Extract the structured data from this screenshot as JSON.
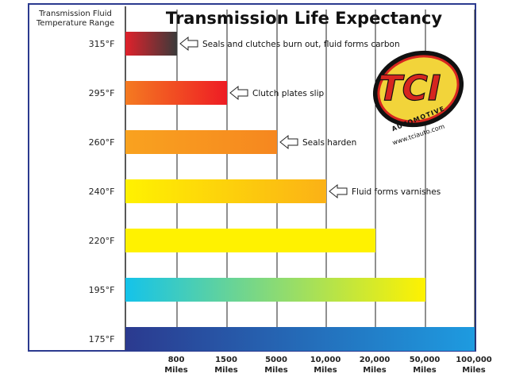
{
  "chart_data": {
    "type": "bar",
    "orientation": "horizontal",
    "title": "Transmission Life Expectancy",
    "ylabel": [
      "Transmission Fluid",
      "Temperature Range"
    ],
    "categories": [
      "315°F",
      "295°F",
      "260°F",
      "240°F",
      "220°F",
      "195°F",
      "175°F"
    ],
    "x_ticks": [
      {
        "value": "800",
        "unit": "Miles"
      },
      {
        "value": "1500",
        "unit": "Miles"
      },
      {
        "value": "5000",
        "unit": "Miles"
      },
      {
        "value": "10,000",
        "unit": "Miles"
      },
      {
        "value": "20,000",
        "unit": "Miles"
      },
      {
        "value": "50,000",
        "unit": "Miles"
      },
      {
        "value": "100,000",
        "unit": "Miles"
      }
    ],
    "values": [
      800,
      1500,
      5000,
      10000,
      20000,
      50000,
      100000
    ],
    "bar_colors": [
      [
        "#e0212b",
        "#3a3a3a"
      ],
      [
        "#f47a21",
        "#ee1c24"
      ],
      [
        "#f9a21f",
        "#f6871f"
      ],
      [
        "#fff200",
        "#fbb116"
      ],
      [
        "#fff200",
        "#fff200"
      ],
      [
        "#14c3ea",
        "#fff200"
      ],
      [
        "#2b3a8f",
        "#1e9be0"
      ]
    ],
    "annotations": [
      "Seals and clutches burn out, fluid forms carbon",
      "Clutch plates slip",
      "Seals harden",
      "Fluid forms varnishes",
      "",
      "",
      ""
    ],
    "legend": "none",
    "grid": "vertical"
  },
  "logo": {
    "text": "TCI",
    "subtext": "AUTOMOTIVE",
    "url": "www.tciauto.com",
    "colors": {
      "fill": "#f2d43a",
      "ring": "#d6261f",
      "letters": "#d6261f"
    }
  }
}
